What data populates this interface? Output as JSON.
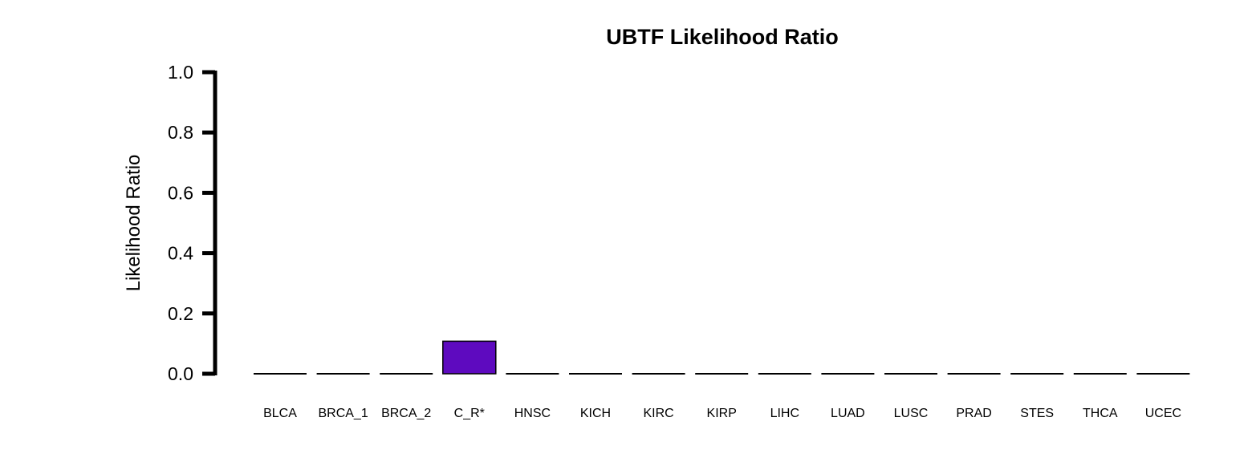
{
  "chart_data": {
    "type": "bar",
    "title": "UBTF Likelihood Ratio",
    "xlabel": "",
    "ylabel": "Likelihood Ratio",
    "ylim": [
      0,
      1
    ],
    "yticks": [
      "0.0",
      "0.2",
      "0.4",
      "0.6",
      "0.8",
      "1.0"
    ],
    "categories": [
      "BLCA",
      "BRCA_1",
      "BRCA_2",
      "C_R*",
      "HNSC",
      "KICH",
      "KIRC",
      "KIRP",
      "LIHC",
      "LUAD",
      "LUSC",
      "PRAD",
      "STES",
      "THCA",
      "UCEC"
    ],
    "values": [
      0,
      0,
      0,
      0.108,
      0,
      0,
      0,
      0,
      0,
      0,
      0,
      0,
      0,
      0,
      0
    ],
    "bar_color": "#5e0abf",
    "grid": false,
    "legend": "none"
  }
}
